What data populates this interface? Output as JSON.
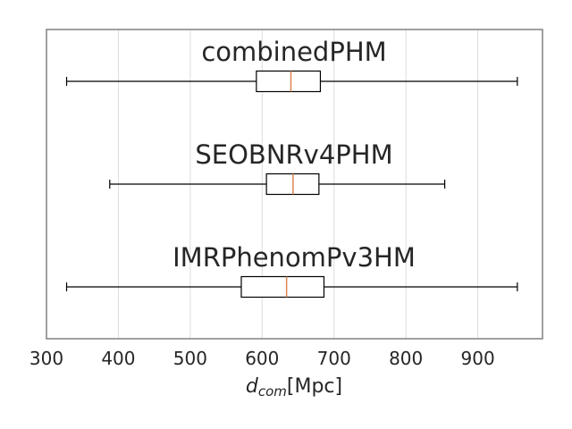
{
  "chart_data": {
    "type": "boxplot",
    "orientation": "horizontal",
    "xlabel": {
      "main": "d",
      "sub": "com",
      "rest": "[Mpc]"
    },
    "xlim": [
      300,
      990
    ],
    "xticks": [
      300,
      400,
      500,
      600,
      700,
      800,
      900
    ],
    "grid": "vertical",
    "series": [
      {
        "name": "combinedPHM",
        "whisker_low": 328,
        "q1": 592,
        "median": 640,
        "q3": 681,
        "whisker_high": 955
      },
      {
        "name": "SEOBNRv4PHM",
        "whisker_low": 388,
        "q1": 606,
        "median": 643,
        "q3": 679,
        "whisker_high": 854
      },
      {
        "name": "IMRPhenomPv3HM",
        "whisker_low": 328,
        "q1": 571,
        "median": 634,
        "q3": 686,
        "whisker_high": 955
      }
    ],
    "colors": {
      "median": "#dd8452",
      "box": "#000000",
      "grid": "#dddddd",
      "frame": "#808080"
    }
  }
}
